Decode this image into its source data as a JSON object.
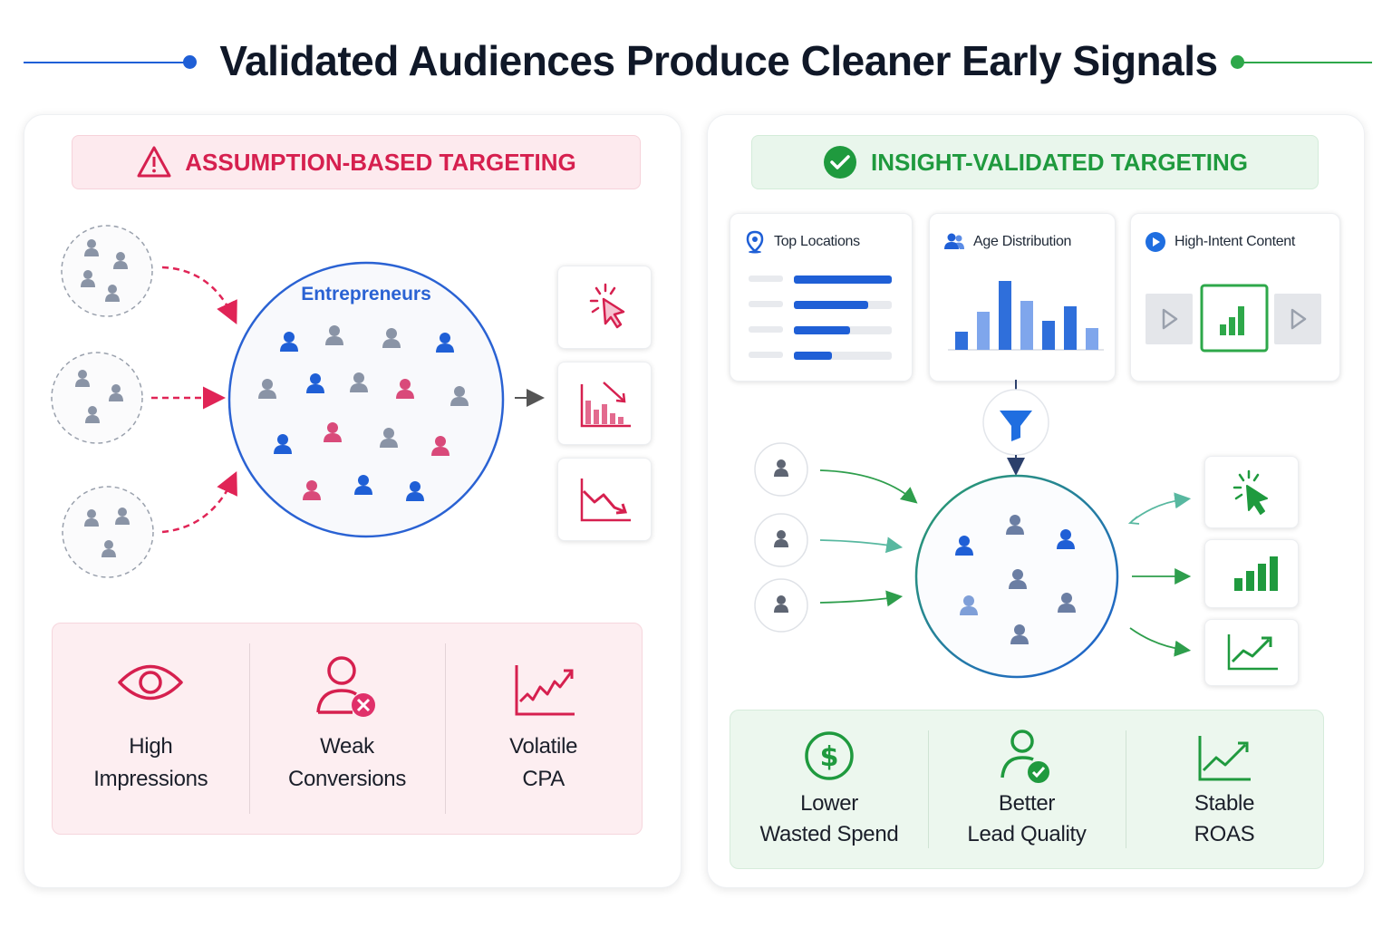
{
  "header": {
    "title": "Validated Audiences Produce Cleaner Early Signals"
  },
  "left_panel": {
    "banner": "ASSUMPTION-BASED TARGETING",
    "circle_label": "Entrepreneurs",
    "metrics": [
      {
        "line1": "High",
        "line2": "Impressions",
        "icon": "eye-icon"
      },
      {
        "line1": "Weak",
        "line2": "Conversions",
        "icon": "user-x-icon"
      },
      {
        "line1": "Volatile",
        "line2": "CPA",
        "icon": "volatile-chart-icon"
      }
    ]
  },
  "right_panel": {
    "banner": "INSIGHT-VALIDATED TARGETING",
    "insight_cards": [
      {
        "title": "Top Locations",
        "icon": "location-pin-icon"
      },
      {
        "title": "Age Distribution",
        "icon": "users-icon"
      },
      {
        "title": "High-Intent Content",
        "icon": "play-circle-icon"
      }
    ],
    "metrics": [
      {
        "line1": "Lower",
        "line2": "Wasted Spend",
        "icon": "dollar-icon"
      },
      {
        "line1": "Better",
        "line2": "Lead Quality",
        "icon": "user-check-icon"
      },
      {
        "line1": "Stable",
        "line2": "ROAS",
        "icon": "trend-up-icon"
      }
    ]
  },
  "colors": {
    "blue": "#1f5fd6",
    "green": "#2ea84a",
    "red": "#d6204f",
    "pink": "#d94a7a",
    "gray": "#8a94a6"
  }
}
